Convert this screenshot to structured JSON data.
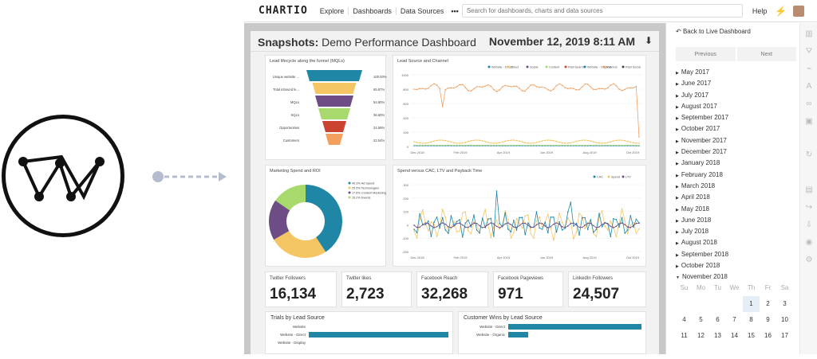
{
  "app": {
    "brand": "CHARTIO",
    "nav": [
      "Explore",
      "Dashboards",
      "Data Sources"
    ],
    "more": "•••",
    "search_placeholder": "Search for dashboards, charts and data sources",
    "help": "Help"
  },
  "dashboard": {
    "title_prefix": "Snapshots:",
    "title_name": "Demo Performance Dashboard",
    "date": "November 12, 2019 8:11 AM"
  },
  "funnel": {
    "title": "Lead lifecycle along the funnel (MQLs)",
    "rows": [
      {
        "label": "Unique website ...",
        "value": "100.00%",
        "color": "#1f86a6"
      },
      {
        "label": "Total inbound le...",
        "value": "65.87%",
        "color": "#f4c663"
      },
      {
        "label": "MQLs",
        "value": "54.80%",
        "color": "#6e4c86"
      },
      {
        "label": "SQLs",
        "value": "36.60%",
        "color": "#a8d96d"
      },
      {
        "label": "Opportunities",
        "value": "24.59%",
        "color": "#c9432e"
      },
      {
        "label": "Customers",
        "value": "22.54%",
        "color": "#f3a05f"
      }
    ]
  },
  "lead_chart": {
    "title": "Lead Source and Channel",
    "legend": [
      "Website - Direct",
      "Direct",
      "Social",
      "Content",
      "Paid Search",
      "Website - Organic",
      "Referral",
      "Paid Social"
    ],
    "y_ticks": [
      "1000",
      "800",
      "600",
      "400",
      "200",
      "0"
    ],
    "x_ticks": [
      "Dec 2018",
      "Feb 2019",
      "Apr 2019",
      "Jun 2019",
      "Aug 2019",
      "Oct 2019"
    ]
  },
  "donut": {
    "title": "Marketing Spend and ROI",
    "legend": [
      {
        "label": "40.3% Ad Spend",
        "color": "#1f86a6"
      },
      {
        "label": "25.5% Technologies",
        "color": "#f4c663"
      },
      {
        "label": "17.8% Content Marketing",
        "color": "#6e4c86"
      },
      {
        "label": "15.2% Events",
        "color": "#a8d96d"
      }
    ]
  },
  "spend_chart": {
    "title": "Spend versus CAC, LTV and Payback Time",
    "legend": [
      "CAC",
      "Spend",
      "LTV"
    ],
    "y_ticks": [
      "300",
      "200",
      "100",
      "0",
      "-100",
      "-200"
    ],
    "x_ticks": [
      "Dec 2018",
      "Feb 2019",
      "Apr 2019",
      "Jun 2019",
      "Aug 2019",
      "Oct 2019"
    ]
  },
  "kpis": [
    {
      "label": "Twitter Followers",
      "value": "16,134"
    },
    {
      "label": "Twitter likes",
      "value": "2,723"
    },
    {
      "label": "Facebook Reach",
      "value": "32,268"
    },
    {
      "label": "Facebook Pageviews",
      "value": "971"
    },
    {
      "label": "LinkedIn Followers",
      "value": "24,507"
    }
  ],
  "trials": {
    "title": "Trials by Lead Source",
    "rows": [
      {
        "label": "Website",
        "value": 0
      },
      {
        "label": "Website - Direct",
        "value": 100
      },
      {
        "label": "Website - Display",
        "value": 0
      }
    ]
  },
  "wins": {
    "title": "Customer Wins by Lead Source",
    "rows": [
      {
        "label": "Website - Direct",
        "value": 100
      },
      {
        "label": "Website - Organic",
        "value": 15
      }
    ]
  },
  "sidebar": {
    "back": "Back to Live Dashboard",
    "previous": "Previous",
    "next": "Next",
    "months": [
      "May 2017",
      "June 2017",
      "July 2017",
      "August 2017",
      "September 2017",
      "October 2017",
      "November 2017",
      "December 2017",
      "January 2018",
      "February 2018",
      "March 2018",
      "April 2018",
      "May 2018",
      "June 2018",
      "July 2018",
      "August 2018",
      "September 2018",
      "October 2018"
    ],
    "expanded_month": "November 2018",
    "weekdays": [
      "Su",
      "Mo",
      "Tu",
      "We",
      "Th",
      "Fr",
      "Sa"
    ],
    "weeks": [
      [
        "",
        "",
        "",
        "",
        "1",
        "2",
        "3"
      ],
      [
        "4",
        "5",
        "6",
        "7",
        "8",
        "9",
        "10"
      ],
      [
        "11",
        "12",
        "13",
        "14",
        "15",
        "16",
        "17"
      ]
    ]
  }
}
